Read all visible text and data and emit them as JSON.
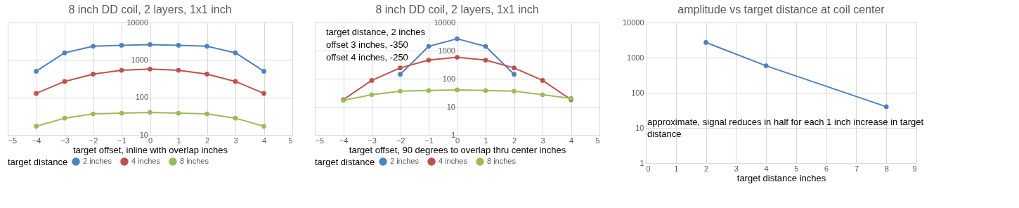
{
  "chart_data": [
    {
      "type": "line",
      "title": "8 inch DD coil, 2 layers, 1x1 inch",
      "xlabel": "target offset, inline with overlap inches",
      "legend_title": "target distance",
      "legend": "bottom",
      "marker": "circle",
      "grid": true,
      "log": true,
      "x": [
        -4,
        -3,
        -2,
        -1,
        0,
        1,
        2,
        3,
        4
      ],
      "series": [
        {
          "name": "2 inches",
          "color": "#4f81bd",
          "values": [
            500,
            1550,
            2320,
            2470,
            2570,
            2470,
            2320,
            1550,
            500
          ]
        },
        {
          "name": "4 inches",
          "color": "#c0504d",
          "values": [
            128,
            267,
            420,
            530,
            573,
            530,
            420,
            267,
            128
          ]
        },
        {
          "name": "8 inches",
          "color": "#9bbb59",
          "values": [
            17,
            28,
            36.5,
            38,
            40,
            38,
            36.5,
            28,
            17
          ]
        }
      ],
      "xlim": [
        -5,
        5
      ],
      "xticks": [
        -5,
        -4,
        -3,
        -2,
        -1,
        0,
        1,
        2,
        3,
        4,
        5
      ],
      "ylim": [
        10,
        10000
      ],
      "yticks": [
        10,
        100,
        1000,
        10000
      ]
    },
    {
      "type": "line",
      "title": "8 inch DD coil, 2 layers, 1x1 inch",
      "xlabel": "target offset, 90 degrees to overlap thru center inches",
      "legend_title": "target distance",
      "legend": "bottom",
      "marker": "circle",
      "grid": true,
      "log": true,
      "annotations": [
        "target distance, 2 inches",
        "offset 3 inches, -350",
        "offset 4 inches, -250"
      ],
      "x": [
        -4,
        -3,
        -2,
        -1,
        0,
        1,
        2,
        3,
        4
      ],
      "series": [
        {
          "name": "2 inches",
          "color": "#4f81bd",
          "values": [
            null,
            null,
            144,
            1410,
            2640,
            1410,
            144,
            null,
            null
          ]
        },
        {
          "name": "4 inches",
          "color": "#c0504d",
          "values": [
            18,
            87,
            242,
            459,
            575,
            459,
            242,
            87,
            18
          ]
        },
        {
          "name": "8 inches",
          "color": "#9bbb59",
          "values": [
            17,
            27,
            36,
            38,
            40,
            38,
            36,
            27,
            20
          ]
        }
      ],
      "xlim": [
        -5,
        5
      ],
      "xticks": [
        -5,
        -4,
        -3,
        -2,
        -1,
        0,
        1,
        2,
        3,
        4,
        5
      ],
      "ylim": [
        1,
        10000
      ],
      "yticks": [
        1,
        10,
        100,
        1000,
        10000
      ]
    },
    {
      "type": "line",
      "title": "amplitude vs target distance at coil center",
      "xlabel": "target distance inches",
      "marker": "circle",
      "grid": true,
      "log": true,
      "annotations": [
        "approximate, signal reduces in half for each 1 inch increase in target distance"
      ],
      "x": [
        2,
        4,
        8
      ],
      "series": [
        {
          "color": "#4f81bd",
          "values": [
            2700,
            586,
            40
          ]
        }
      ],
      "xlim": [
        0,
        9
      ],
      "xticks": [
        0,
        1,
        2,
        3,
        4,
        5,
        6,
        7,
        8,
        9
      ],
      "ylim": [
        1,
        10000
      ],
      "yticks": [
        1,
        10,
        100,
        1000,
        10000
      ]
    }
  ]
}
